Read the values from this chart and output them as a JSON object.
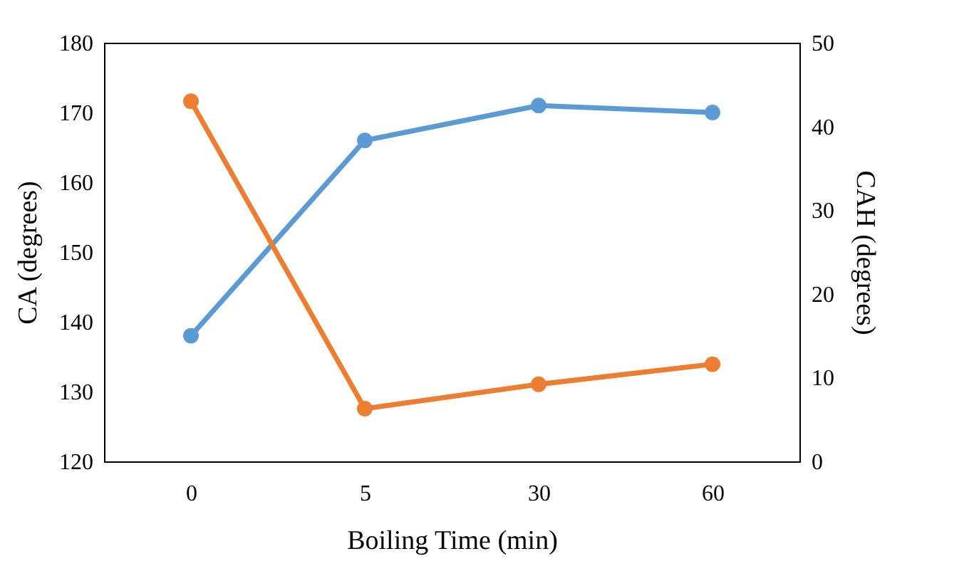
{
  "chart_data": {
    "type": "line",
    "xlabel": "Boiling Time (min)",
    "ylabel": "CA (degrees)",
    "y2label": "CAH (degrees)",
    "categories": [
      "0",
      "5",
      "30",
      "60"
    ],
    "series": [
      {
        "color": "#5b9bd5",
        "values": [
          138,
          166,
          171,
          170
        ]
      },
      {
        "color": "#ed7d31",
        "values": [
          43,
          6.3,
          9.2,
          11.6
        ],
        "axis": "y2"
      }
    ],
    "ylim": [
      120,
      180
    ],
    "yticks": [
      120,
      130,
      140,
      150,
      160,
      170,
      180
    ],
    "y2lim": [
      0,
      50
    ],
    "y2ticks": [
      0,
      10,
      20,
      30,
      40,
      50
    ],
    "grid": false,
    "marker": "circle",
    "line_style": "solid"
  }
}
